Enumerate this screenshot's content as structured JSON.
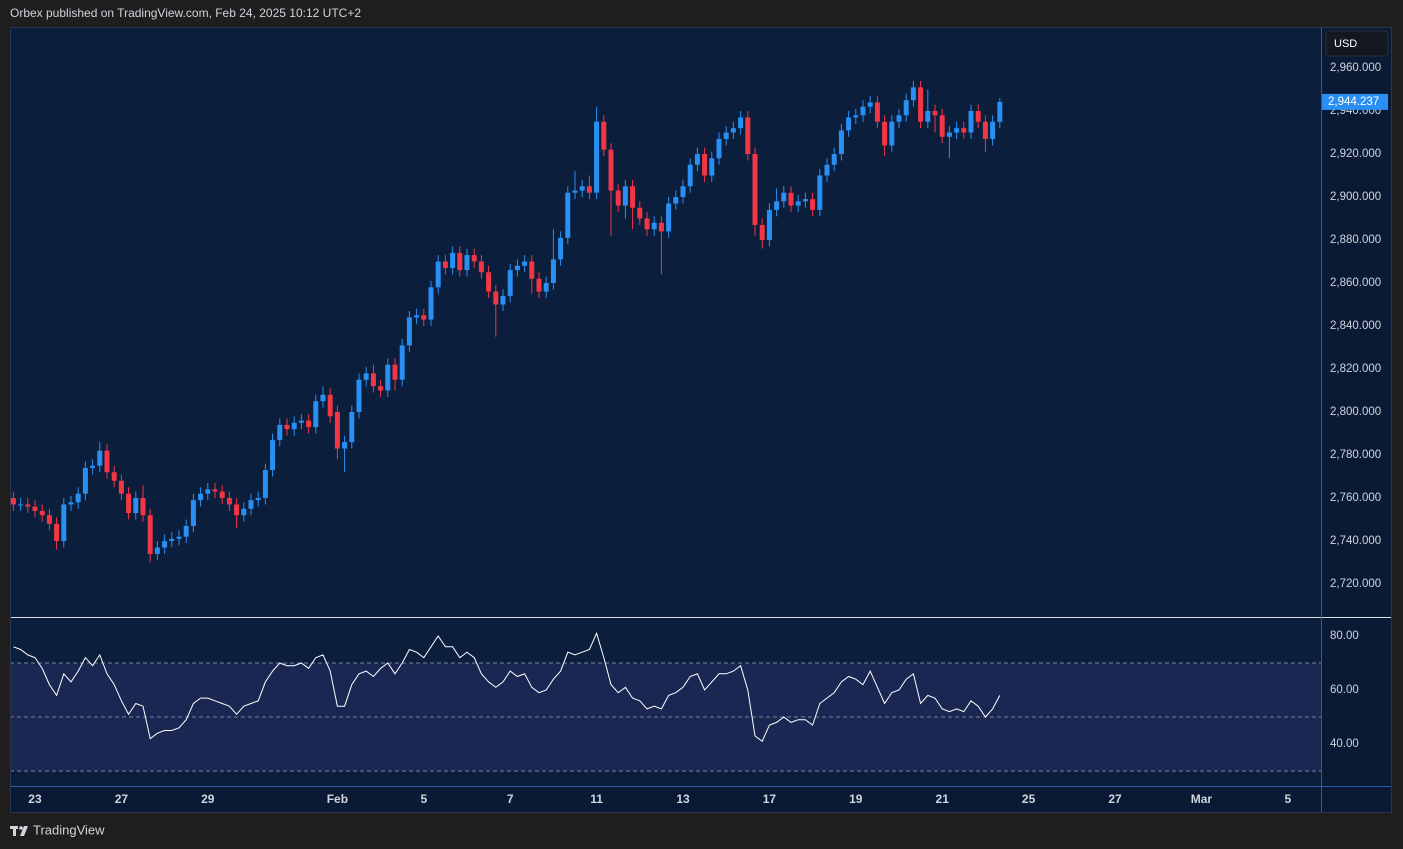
{
  "header": "Orbex published on TradingView.com, Feb 24, 2025 10:12 UTC+2",
  "footer": "TradingView",
  "chart_data": [
    {
      "type": "candlestick",
      "currency": "USD",
      "last_price_label": "2,944.237",
      "up_color": "#2a8ff2",
      "down_color": "#f23645",
      "grid": false,
      "xlim": [
        -0.47,
        181.61
      ],
      "xticks": [
        {
          "value": 3,
          "label": "23"
        },
        {
          "value": 15,
          "label": "27"
        },
        {
          "value": 27,
          "label": "29"
        },
        {
          "value": 45,
          "label": "Feb"
        },
        {
          "value": 57,
          "label": "5"
        },
        {
          "value": 69,
          "label": "7"
        },
        {
          "value": 81,
          "label": "11"
        },
        {
          "value": 93,
          "label": "13"
        },
        {
          "value": 105,
          "label": "17"
        },
        {
          "value": 117,
          "label": "19"
        },
        {
          "value": 129,
          "label": "21"
        },
        {
          "value": 141,
          "label": "25"
        },
        {
          "value": 153,
          "label": "27"
        },
        {
          "value": 165,
          "label": "Mar"
        },
        {
          "value": 177,
          "label": "5"
        }
      ],
      "ylim": [
        2704.65,
        2979.07
      ],
      "yticks": [
        {
          "value": 2720,
          "label": "2,720.000"
        },
        {
          "value": 2740,
          "label": "2,740.000"
        },
        {
          "value": 2760,
          "label": "2,760.000"
        },
        {
          "value": 2780,
          "label": "2,780.000"
        },
        {
          "value": 2800,
          "label": "2,800.000"
        },
        {
          "value": 2820,
          "label": "2,820.000"
        },
        {
          "value": 2840,
          "label": "2,840.000"
        },
        {
          "value": 2860,
          "label": "2,860.000"
        },
        {
          "value": 2880,
          "label": "2,880.000"
        },
        {
          "value": 2900,
          "label": "2,900.000"
        },
        {
          "value": 2920,
          "label": "2,920.000"
        },
        {
          "value": 2940,
          "label": "2,940.000"
        },
        {
          "value": 2960,
          "label": "2,960.000"
        }
      ],
      "open": [
        2760,
        2757,
        2757,
        2756,
        2754,
        2752,
        2748,
        2740,
        2757,
        2758,
        2762,
        2774,
        2775,
        2782,
        2772,
        2768,
        2762,
        2753,
        2760,
        2752,
        2734,
        2737,
        2740,
        2741,
        2742,
        2747,
        2759,
        2762,
        2764,
        2763,
        2760,
        2757,
        2752,
        2755,
        2759,
        2760,
        2773,
        2787,
        2794,
        2792,
        2795,
        2796,
        2793,
        2805,
        2808,
        2800,
        2783,
        2786,
        2800,
        2815,
        2818,
        2812,
        2810,
        2822,
        2815,
        2831,
        2844,
        2845,
        2843,
        2858,
        2870,
        2867,
        2874,
        2866,
        2873,
        2870,
        2865,
        2856,
        2850,
        2854,
        2866,
        2868,
        2870,
        2862,
        2856,
        2860,
        2871,
        2881,
        2902,
        2903,
        2905,
        2902,
        2935,
        2922,
        2903,
        2896,
        2905,
        2895,
        2890,
        2885,
        2888,
        2884,
        2897,
        2900,
        2905,
        2915,
        2920,
        2910,
        2918,
        2927,
        2930,
        2932,
        2937,
        2920,
        2887,
        2880,
        2894,
        2898,
        2902,
        2896,
        2898,
        2899,
        2894,
        2910,
        2915,
        2920,
        2931,
        2937,
        2938,
        2942,
        2944,
        2935,
        2924,
        2935,
        2938,
        2945,
        2951,
        2935,
        2940,
        2938,
        2928,
        2930,
        2932,
        2930,
        2940,
        2935,
        2927,
        2935
      ],
      "high": [
        2763,
        2760,
        2760,
        2759,
        2757,
        2755,
        2751,
        2760,
        2761,
        2765,
        2777,
        2778,
        2786,
        2785,
        2775,
        2771,
        2765,
        2763,
        2766,
        2755,
        2740,
        2743,
        2744,
        2745,
        2750,
        2762,
        2765,
        2767,
        2767,
        2766,
        2763,
        2760,
        2758,
        2762,
        2763,
        2776,
        2790,
        2797,
        2797,
        2798,
        2799,
        2799,
        2808,
        2812,
        2811,
        2803,
        2789,
        2803,
        2818,
        2821,
        2822,
        2815,
        2825,
        2825,
        2834,
        2847,
        2848,
        2848,
        2861,
        2873,
        2873,
        2877,
        2877,
        2876,
        2876,
        2873,
        2868,
        2859,
        2857,
        2869,
        2871,
        2873,
        2873,
        2865,
        2863,
        2885,
        2884,
        2905,
        2912,
        2908,
        2910,
        2942,
        2938,
        2925,
        2906,
        2908,
        2908,
        2898,
        2893,
        2891,
        2891,
        2900,
        2903,
        2908,
        2918,
        2923,
        2923,
        2921,
        2930,
        2933,
        2935,
        2940,
        2940,
        2923,
        2890,
        2897,
        2904,
        2905,
        2905,
        2901,
        2902,
        2902,
        2913,
        2918,
        2923,
        2934,
        2940,
        2941,
        2945,
        2947,
        2947,
        2938,
        2938,
        2941,
        2948,
        2954,
        2954,
        2950,
        2943,
        2941,
        2933,
        2935,
        2935,
        2943,
        2943,
        2938,
        2938,
        2946
      ],
      "low": [
        2754,
        2754,
        2753,
        2751,
        2749,
        2745,
        2736,
        2737,
        2754,
        2755,
        2759,
        2771,
        2772,
        2769,
        2765,
        2759,
        2750,
        2750,
        2749,
        2730,
        2731,
        2734,
        2737,
        2738,
        2739,
        2744,
        2756,
        2759,
        2760,
        2757,
        2754,
        2746,
        2749,
        2752,
        2756,
        2757,
        2770,
        2784,
        2789,
        2789,
        2792,
        2790,
        2790,
        2802,
        2795,
        2778,
        2772,
        2783,
        2797,
        2812,
        2809,
        2807,
        2807,
        2810,
        2812,
        2828,
        2841,
        2840,
        2840,
        2855,
        2864,
        2864,
        2863,
        2863,
        2867,
        2862,
        2853,
        2835,
        2847,
        2851,
        2863,
        2865,
        2855,
        2853,
        2853,
        2857,
        2868,
        2878,
        2899,
        2900,
        2899,
        2899,
        2919,
        2882,
        2893,
        2890,
        2885,
        2887,
        2882,
        2882,
        2864,
        2881,
        2894,
        2897,
        2902,
        2912,
        2907,
        2907,
        2915,
        2924,
        2927,
        2929,
        2917,
        2882,
        2876,
        2877,
        2891,
        2895,
        2893,
        2893,
        2895,
        2891,
        2891,
        2907,
        2912,
        2917,
        2928,
        2934,
        2935,
        2939,
        2932,
        2919,
        2921,
        2932,
        2935,
        2942,
        2932,
        2932,
        2930,
        2925,
        2918,
        2927,
        2927,
        2927,
        2932,
        2921,
        2924,
        2932
      ],
      "close": [
        2757,
        2757,
        2756,
        2754,
        2752,
        2748,
        2740,
        2757,
        2758,
        2762,
        2774,
        2775,
        2782,
        2772,
        2768,
        2762,
        2753,
        2760,
        2752,
        2734,
        2737,
        2740,
        2741,
        2742,
        2747,
        2759,
        2762,
        2764,
        2763,
        2760,
        2757,
        2752,
        2755,
        2759,
        2760,
        2773,
        2787,
        2794,
        2792,
        2795,
        2796,
        2793,
        2805,
        2808,
        2798,
        2783,
        2786,
        2800,
        2815,
        2818,
        2812,
        2810,
        2822,
        2815,
        2831,
        2844,
        2845,
        2843,
        2858,
        2870,
        2867,
        2874,
        2866,
        2873,
        2870,
        2865,
        2856,
        2850,
        2854,
        2866,
        2868,
        2870,
        2862,
        2856,
        2860,
        2871,
        2881,
        2902,
        2903,
        2905,
        2902,
        2935,
        2922,
        2903,
        2896,
        2905,
        2895,
        2890,
        2885,
        2888,
        2884,
        2897,
        2900,
        2905,
        2915,
        2920,
        2910,
        2918,
        2927,
        2930,
        2932,
        2937,
        2920,
        2887,
        2880,
        2894,
        2898,
        2902,
        2896,
        2898,
        2899,
        2894,
        2910,
        2915,
        2920,
        2931,
        2937,
        2938,
        2942,
        2944,
        2935,
        2924,
        2935,
        2938,
        2945,
        2951,
        2935,
        2940,
        2938,
        2928,
        2930,
        2932,
        2930,
        2940,
        2935,
        2927,
        2935,
        2944.237
      ]
    },
    {
      "type": "line",
      "color": "#ffffff",
      "band_color": "#1a2752",
      "ylim": [
        24.44,
        86.67
      ],
      "yticks": [
        {
          "value": 40,
          "label": "40.00"
        },
        {
          "value": 60,
          "label": "60.00"
        },
        {
          "value": 80,
          "label": "80.00"
        }
      ],
      "bands": [
        70,
        50,
        30
      ],
      "values": [
        76,
        75,
        73,
        72,
        68,
        62,
        58,
        66,
        63,
        67,
        72,
        69,
        73,
        66,
        62,
        56,
        51,
        55,
        54,
        42,
        44,
        45,
        45,
        46,
        49,
        55,
        57,
        57,
        56,
        55,
        54,
        51,
        54,
        55,
        56,
        63,
        67,
        70,
        69,
        69,
        70,
        68,
        72,
        73,
        67,
        54,
        54,
        62,
        66,
        67,
        65,
        68,
        70,
        66,
        70,
        75,
        74,
        72,
        76,
        80,
        76,
        76,
        72,
        74,
        72,
        66,
        63,
        61,
        63,
        67,
        65,
        66,
        61,
        59,
        60,
        64,
        67,
        74,
        73,
        74,
        75,
        81,
        72,
        62,
        59,
        61,
        57,
        56,
        53,
        54,
        53,
        58,
        59,
        61,
        65,
        66,
        60,
        63,
        66,
        66,
        67,
        69,
        60,
        43,
        41,
        47,
        48,
        50,
        48,
        49,
        49,
        47,
        55,
        57,
        59,
        63,
        65,
        64,
        62,
        67,
        61,
        55,
        59,
        60,
        64,
        66,
        55,
        58,
        57,
        53,
        52,
        53,
        52,
        56,
        54,
        50,
        53,
        58
      ]
    }
  ]
}
